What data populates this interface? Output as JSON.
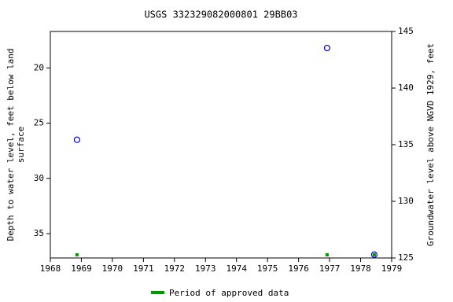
{
  "chart_data": {
    "type": "scatter",
    "title": "USGS 332329082000801 29BB03",
    "ylabel": [
      "Depth to water level, feet below land",
      "surface"
    ],
    "y2label": "Groundwater level above NGVD 1929, feet",
    "xlim": [
      1968,
      1979
    ],
    "xticks": [
      1968,
      1969,
      1970,
      1971,
      1972,
      1973,
      1974,
      1975,
      1976,
      1977,
      1978,
      1979
    ],
    "ylim": [
      37.2,
      16.7
    ],
    "yticks": [
      20,
      25,
      30,
      35
    ],
    "y2lim": [
      125,
      145
    ],
    "y2ticks": [
      125,
      130,
      135,
      140,
      145
    ],
    "series": [
      {
        "color": "#0000cc",
        "x": [
          1968.86,
          1976.92,
          1978.44
        ],
        "values": [
          26.5,
          18.2,
          36.9
        ]
      }
    ],
    "approved": {
      "name": "Period of approved data",
      "color": "#009900",
      "x": [
        1968.86,
        1976.92,
        1978.44
      ]
    }
  }
}
